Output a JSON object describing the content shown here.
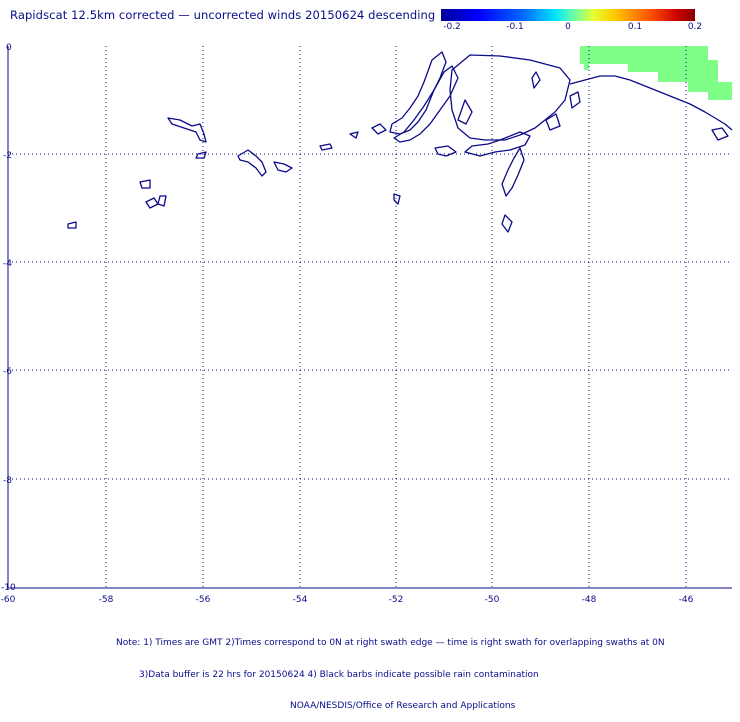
{
  "title": "Rapidscat 12.5km corrected — uncorrected winds 20150624 descending",
  "colorbar": {
    "ticks": [
      "-0.2",
      "-0.1",
      "0",
      "0.1",
      "0.2"
    ],
    "colors": [
      "#00009a",
      "#0000ff",
      "#00e5ff",
      "#66ffaa",
      "#e6ff33",
      "#ff5500",
      "#880000"
    ]
  },
  "map": {
    "lon_range": [
      -60,
      -45
    ],
    "lat_range": [
      -10,
      0
    ],
    "x_ticks": [
      "-60",
      "-58",
      "-56",
      "-54",
      "-52",
      "-50",
      "-48",
      "-46"
    ],
    "y_ticks": [
      "0",
      "-2",
      "-4",
      "-6",
      "-8",
      "-10"
    ],
    "grid": true,
    "coastline_color": "#0b0b8a",
    "swath_color": "#80ff88",
    "swath_value": 0.05
  },
  "notes": {
    "line1": "Note: 1) Times are GMT 2)Times correspond to 0N at right swath edge — time is right swath for overlapping swaths at 0N",
    "line2": "3)Data buffer is 22 hrs for 20150624 4) Black barbs indicate possible rain contamination",
    "line3": "NOAA/NESDIS/Office of Research and Applications"
  }
}
